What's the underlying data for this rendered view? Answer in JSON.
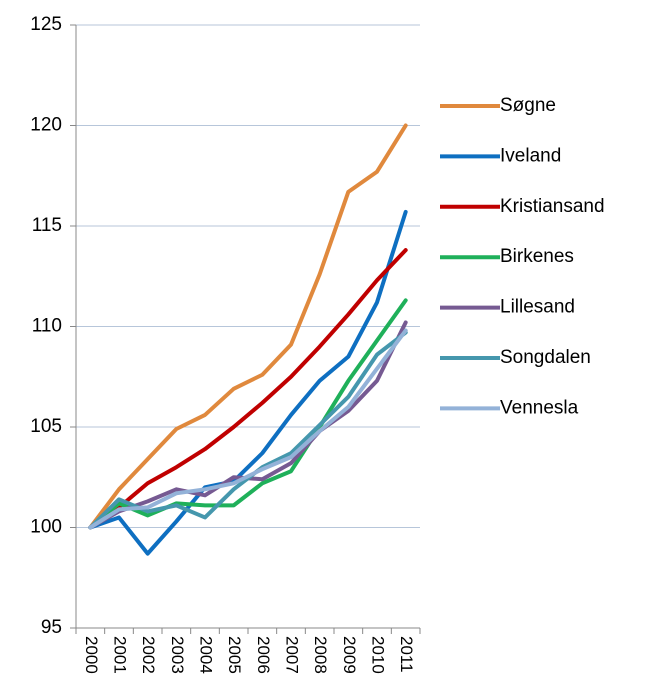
{
  "chart_data": {
    "type": "line",
    "categories": [
      "2000",
      "2001",
      "2002",
      "2003",
      "2004",
      "2005",
      "2006",
      "2007",
      "2008",
      "2009",
      "2010",
      "2011"
    ],
    "series": [
      {
        "name": "Søgne",
        "color": "#e0893d",
        "values": [
          100,
          101.9,
          103.4,
          104.9,
          105.6,
          106.9,
          107.6,
          109.1,
          112.6,
          116.7,
          117.7,
          120.0
        ]
      },
      {
        "name": "Iveland",
        "color": "#0e6fc1",
        "values": [
          100,
          100.5,
          98.7,
          100.3,
          102.0,
          102.3,
          103.7,
          105.6,
          107.3,
          108.5,
          111.2,
          115.7
        ]
      },
      {
        "name": "Kristiansand",
        "color": "#c00000",
        "values": [
          100,
          101.0,
          102.2,
          103.0,
          103.9,
          105.0,
          106.2,
          107.5,
          109.0,
          110.6,
          112.3,
          113.8
        ]
      },
      {
        "name": "Birkenes",
        "color": "#1fb05a",
        "values": [
          100,
          101.2,
          100.6,
          101.2,
          101.1,
          101.1,
          102.2,
          102.8,
          105.0,
          107.3,
          109.3,
          111.3
        ]
      },
      {
        "name": "Lillesand",
        "color": "#765a92",
        "values": [
          100,
          100.8,
          101.3,
          101.9,
          101.6,
          102.5,
          102.4,
          103.2,
          104.8,
          105.8,
          107.3,
          110.2
        ]
      },
      {
        "name": "Songdalen",
        "color": "#4597ad",
        "values": [
          100,
          101.4,
          100.8,
          101.1,
          100.5,
          101.9,
          103.0,
          103.7,
          105.1,
          106.5,
          108.6,
          109.7
        ]
      },
      {
        "name": "Vennesla",
        "color": "#93b2d8",
        "values": [
          100,
          100.9,
          101.0,
          101.7,
          101.9,
          102.2,
          102.9,
          103.5,
          104.8,
          106.0,
          107.9,
          109.8
        ]
      }
    ],
    "ylim": [
      95,
      125
    ],
    "yticks": [
      95,
      100,
      105,
      110,
      115,
      120,
      125
    ],
    "grid": true,
    "legend": "right"
  }
}
